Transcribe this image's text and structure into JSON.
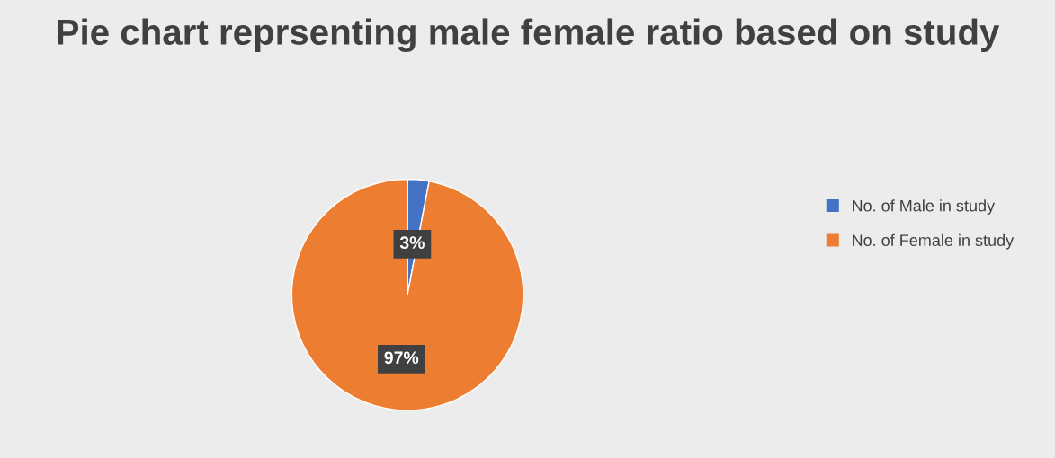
{
  "chart_data": {
    "type": "pie",
    "title": "Pie chart reprsenting male female ratio based on study",
    "categories": [
      "No. of Male in study",
      "No. of Female in study"
    ],
    "values": [
      3,
      97
    ],
    "colors": [
      "#4472c4",
      "#ed7d31"
    ],
    "value_labels": [
      "3%",
      "97%"
    ],
    "legend": "right"
  }
}
